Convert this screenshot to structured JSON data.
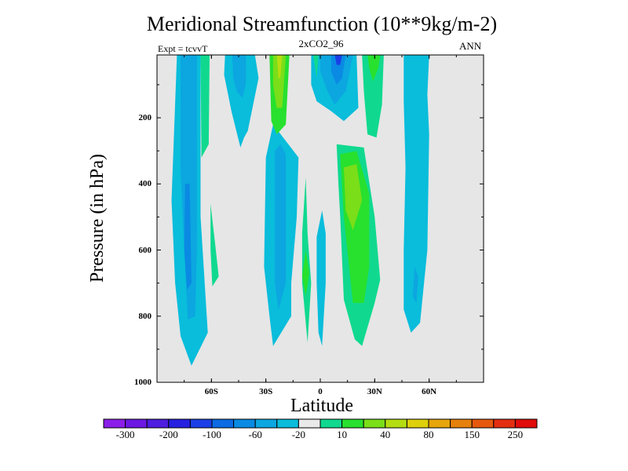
{
  "chart_data": {
    "type": "contour",
    "title": "Meridional Streamfunction (10**9kg/m-2)",
    "subtitle": "2xCO2_96",
    "left_note": "Expt = tcvvT",
    "right_note": "ANN",
    "xlabel": "Latitude",
    "ylabel": "Pressure (in hPa)",
    "xlim": [
      -90,
      90
    ],
    "ylim": [
      1000,
      10
    ],
    "background_color": "#e6e6e6",
    "x_ticks": [
      {
        "value": -60,
        "label": "60S"
      },
      {
        "value": -30,
        "label": "30S"
      },
      {
        "value": 0,
        "label": "0"
      },
      {
        "value": 30,
        "label": "30N"
      },
      {
        "value": 60,
        "label": "60N"
      }
    ],
    "y_ticks": [
      {
        "value": 200,
        "label": "200"
      },
      {
        "value": 400,
        "label": "400"
      },
      {
        "value": 600,
        "label": "600"
      },
      {
        "value": 800,
        "label": "800"
      },
      {
        "value": 1000,
        "label": "1000"
      }
    ],
    "colorbar": {
      "colors": [
        "#8b1ee8",
        "#6b18e3",
        "#4d1de0",
        "#2621e0",
        "#1a3fe6",
        "#0c6ae3",
        "#0a8ae3",
        "#0ca6e0",
        "#09bddb",
        "#e9e9e9",
        "#10d98f",
        "#28e02e",
        "#7ade19",
        "#b5de12",
        "#dfd00c",
        "#e6a50b",
        "#e6800c",
        "#e6580e",
        "#e32e12",
        "#e00c0c"
      ],
      "labels": [
        "-300",
        "-200",
        "-100",
        "-60",
        "-20",
        "10",
        "40",
        "80",
        "150",
        "250"
      ]
    },
    "contour_regions": [
      {
        "color": "#09bddb",
        "points": [
          [
            -79,
            10
          ],
          [
            -66,
            10
          ],
          [
            -66,
            500
          ],
          [
            -62,
            850
          ],
          [
            -71,
            950
          ],
          [
            -77,
            860
          ],
          [
            -80,
            700
          ],
          [
            -82,
            450
          ]
        ]
      },
      {
        "color": "#0ca6e0",
        "points": [
          [
            -77,
            10
          ],
          [
            -68,
            10
          ],
          [
            -68,
            600
          ],
          [
            -69,
            800
          ],
          [
            -73,
            810
          ],
          [
            -75,
            600
          ],
          [
            -77,
            350
          ]
        ]
      },
      {
        "color": "#0a8ae3",
        "points": [
          [
            -74.5,
            400
          ],
          [
            -72,
            400
          ],
          [
            -71,
            700
          ],
          [
            -73.5,
            720
          ],
          [
            -75,
            600
          ]
        ]
      },
      {
        "color": "#10d98f",
        "points": [
          [
            -66,
            10
          ],
          [
            -61,
            10
          ],
          [
            -61.5,
            280
          ],
          [
            -65.5,
            320
          ]
        ]
      },
      {
        "color": "#10d98f",
        "points": [
          [
            -60.5,
            460
          ],
          [
            -58,
            580
          ],
          [
            -56,
            680
          ],
          [
            -59.5,
            710
          ],
          [
            -60.5,
            600
          ]
        ]
      },
      {
        "color": "#09bddb",
        "points": [
          [
            -52.5,
            10
          ],
          [
            -36,
            10
          ],
          [
            -34,
            80
          ],
          [
            -37,
            160
          ],
          [
            -40,
            240
          ],
          [
            -42,
            260
          ],
          [
            -44,
            290
          ],
          [
            -49,
            180
          ],
          [
            -53,
            70
          ]
        ]
      },
      {
        "color": "#0ca6e0",
        "points": [
          [
            -48.5,
            10
          ],
          [
            -41,
            10
          ],
          [
            -41,
            100
          ],
          [
            -43,
            140
          ],
          [
            -46,
            120
          ],
          [
            -48,
            80
          ]
        ]
      },
      {
        "color": "#09bddb",
        "points": [
          [
            -30,
            320
          ],
          [
            -26,
            220
          ],
          [
            -12,
            320
          ],
          [
            -13,
            500
          ],
          [
            -16,
            700
          ],
          [
            -16,
            800
          ],
          [
            -26,
            890
          ],
          [
            -28,
            800
          ],
          [
            -31,
            650
          ]
        ]
      },
      {
        "color": "#0ca6e0",
        "points": [
          [
            -25,
            300
          ],
          [
            -22,
            280
          ],
          [
            -19,
            310
          ],
          [
            -19,
            700
          ],
          [
            -23,
            780
          ],
          [
            -25,
            700
          ]
        ]
      },
      {
        "color": "#28e02e",
        "points": [
          [
            -28,
            10
          ],
          [
            -17,
            10
          ],
          [
            -19,
            220
          ],
          [
            -24,
            250
          ],
          [
            -27,
            210
          ]
        ]
      },
      {
        "color": "#7ade19",
        "points": [
          [
            -26,
            10
          ],
          [
            -19,
            10
          ],
          [
            -21,
            170
          ],
          [
            -24,
            170
          ],
          [
            -26,
            100
          ]
        ]
      },
      {
        "color": "#b5de12",
        "points": [
          [
            -24,
            10
          ],
          [
            -21,
            10
          ],
          [
            -22,
            80
          ],
          [
            -23,
            80
          ]
        ]
      },
      {
        "color": "#09bddb",
        "points": [
          [
            -5,
            10
          ],
          [
            20,
            10
          ],
          [
            21,
            170
          ],
          [
            13,
            210
          ],
          [
            6,
            180
          ],
          [
            -2,
            150
          ],
          [
            -5,
            100
          ]
        ]
      },
      {
        "color": "#0ca6e0",
        "points": [
          [
            0,
            10
          ],
          [
            18,
            10
          ],
          [
            14,
            120
          ],
          [
            8,
            160
          ],
          [
            4,
            120
          ],
          [
            0,
            60
          ]
        ]
      },
      {
        "color": "#0a8ae3",
        "points": [
          [
            6,
            10
          ],
          [
            14,
            10
          ],
          [
            12,
            80
          ],
          [
            9,
            100
          ],
          [
            6,
            60
          ]
        ]
      },
      {
        "color": "#1a3fe6",
        "points": [
          [
            8,
            10
          ],
          [
            12,
            10
          ],
          [
            11,
            40
          ],
          [
            9,
            40
          ]
        ]
      },
      {
        "color": "#10d98f",
        "points": [
          [
            -4,
            10
          ],
          [
            -1,
            10
          ],
          [
            -2,
            80
          ]
        ]
      },
      {
        "color": "#10d98f",
        "points": [
          [
            23,
            10
          ],
          [
            35,
            10
          ],
          [
            34,
            160
          ],
          [
            31,
            260
          ],
          [
            26,
            250
          ],
          [
            24,
            120
          ]
        ]
      },
      {
        "color": "#28e02e",
        "points": [
          [
            26,
            10
          ],
          [
            33,
            10
          ],
          [
            32,
            50
          ],
          [
            29,
            90
          ],
          [
            27,
            50
          ]
        ]
      },
      {
        "color": "#09bddb",
        "points": [
          [
            46,
            10
          ],
          [
            60,
            10
          ],
          [
            59,
            130
          ],
          [
            60,
            250
          ],
          [
            59,
            600
          ],
          [
            55,
            820
          ],
          [
            50,
            850
          ],
          [
            46,
            780
          ],
          [
            46,
            600
          ],
          [
            47,
            350
          ],
          [
            46,
            150
          ]
        ]
      },
      {
        "color": "#0ca6e0",
        "points": [
          [
            52,
            650
          ],
          [
            54,
            680
          ],
          [
            53,
            760
          ],
          [
            51,
            740
          ]
        ]
      },
      {
        "color": "#10d98f",
        "points": [
          [
            9,
            280
          ],
          [
            24,
            290
          ],
          [
            30,
            500
          ],
          [
            33,
            690
          ],
          [
            30,
            760
          ],
          [
            23,
            890
          ],
          [
            19,
            870
          ],
          [
            13,
            750
          ],
          [
            11,
            500
          ],
          [
            10,
            400
          ]
        ]
      },
      {
        "color": "#28e02e",
        "points": [
          [
            11,
            310
          ],
          [
            20,
            300
          ],
          [
            27,
            430
          ],
          [
            27,
            650
          ],
          [
            24,
            760
          ],
          [
            18,
            760
          ],
          [
            13,
            500
          ]
        ]
      },
      {
        "color": "#7ade19",
        "points": [
          [
            13,
            350
          ],
          [
            20,
            340
          ],
          [
            23,
            450
          ],
          [
            18,
            540
          ],
          [
            14,
            480
          ]
        ]
      },
      {
        "color": "#09bddb",
        "points": [
          [
            1,
            480
          ],
          [
            3,
            550
          ],
          [
            3,
            700
          ],
          [
            1,
            890
          ],
          [
            -1,
            850
          ],
          [
            -2,
            700
          ],
          [
            -2,
            560
          ]
        ]
      },
      {
        "color": "#10d98f",
        "points": [
          [
            -8,
            380
          ],
          [
            -7,
            550
          ],
          [
            -5,
            700
          ],
          [
            -7,
            880
          ],
          [
            -10,
            700
          ],
          [
            -10,
            550
          ]
        ]
      },
      {
        "color": "#28e02e",
        "points": [
          [
            -8,
            600
          ],
          [
            -6,
            670
          ],
          [
            -8,
            740
          ],
          [
            -10,
            680
          ]
        ]
      }
    ]
  }
}
